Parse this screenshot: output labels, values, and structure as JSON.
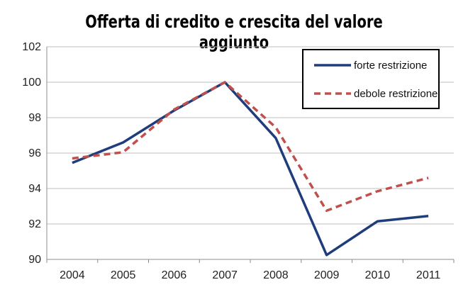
{
  "chart_data": {
    "type": "line",
    "title": "Offerta di credito e crescita del valore aggiunto",
    "xlabel": "",
    "ylabel": "",
    "x": [
      "2004",
      "2005",
      "2006",
      "2007",
      "2008",
      "2009",
      "2010",
      "2011"
    ],
    "ylim": [
      90,
      102
    ],
    "yticks": [
      90,
      92,
      94,
      96,
      98,
      100,
      102
    ],
    "grid": "horizontal",
    "legend_position": "top-right",
    "series": [
      {
        "name": "forte restrizione",
        "color": "#1f3d7a",
        "style": "solid",
        "values": [
          95.45,
          96.6,
          98.4,
          100.0,
          96.85,
          90.25,
          92.15,
          92.45
        ]
      },
      {
        "name": "debole restrizione",
        "color": "#c0504d",
        "style": "dashed",
        "values": [
          95.7,
          96.05,
          98.45,
          100.0,
          97.45,
          92.75,
          93.85,
          94.6
        ]
      }
    ]
  }
}
